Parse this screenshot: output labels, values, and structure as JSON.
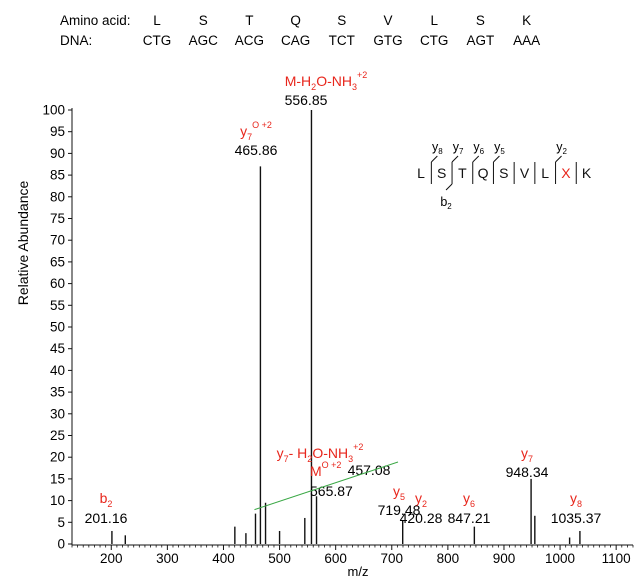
{
  "sequence_table": {
    "amino_label": "Amino acid:",
    "dna_label": "DNA:",
    "amino_acids": [
      "L",
      "S",
      "T",
      "Q",
      "S",
      "V",
      "L",
      "S",
      "K"
    ],
    "codons": [
      "CTG",
      "AGC",
      "ACG",
      "CAG",
      "TCT",
      "GTG",
      "CTG",
      "AGT",
      "AAA"
    ]
  },
  "colors": {
    "annotation": "#e8261c",
    "axis": "#111111",
    "peak": "#111111",
    "leader": "#3aa845"
  },
  "fragment_map": {
    "residues": [
      "L",
      "S",
      "T",
      "Q",
      "S",
      "V",
      "L",
      "X",
      "K"
    ],
    "highlight_residue": "X",
    "top_ions": [
      {
        "ion": "y",
        "sub": "8"
      },
      {
        "ion": "y",
        "sub": "7"
      },
      {
        "ion": "y",
        "sub": "6"
      },
      {
        "ion": "y",
        "sub": "5"
      },
      {
        "ion": "y",
        "sub": "2"
      }
    ],
    "bottom_ions": [
      {
        "ion": "b",
        "sub": "2"
      }
    ]
  },
  "chart_data": {
    "type": "bar",
    "xlabel": "m/z",
    "ylabel": "Relative Abundance",
    "xlim": [
      130,
      1130
    ],
    "ylim": [
      0,
      100
    ],
    "xticks": [
      200,
      300,
      400,
      500,
      600,
      700,
      800,
      900,
      1000,
      1100
    ],
    "yticks": [
      0,
      5,
      10,
      15,
      20,
      25,
      30,
      35,
      40,
      45,
      50,
      55,
      60,
      65,
      70,
      75,
      80,
      85,
      90,
      95,
      100
    ],
    "annotated_peaks": [
      {
        "mz": 201.16,
        "intensity": 3,
        "label": "201.16",
        "ion": "b",
        "sub": "2",
        "sup": ""
      },
      {
        "mz": 420.28,
        "intensity": 4,
        "label": "420.28",
        "ion": "y",
        "sub": "2",
        "sup": ""
      },
      {
        "mz": 457.08,
        "intensity": 7,
        "label": "457.08",
        "ion": "y",
        "sub": "7",
        "sup": "",
        "suffix": "- H",
        "suffix_sub": "2",
        "suffix2": "O-NH",
        "suffix2_sub": "3",
        "suffix2_sup": "+2"
      },
      {
        "mz": 465.86,
        "intensity": 87,
        "label": "465.86",
        "ion": "y",
        "sub": "7",
        "sup": "O +2"
      },
      {
        "mz": 556.85,
        "intensity": 100,
        "label": "556.85",
        "ion": "M-H",
        "sub": "2",
        "sup": "",
        "suffix": "O-NH",
        "suffix_sub": "3",
        "suffix_sup": "+2"
      },
      {
        "mz": 565.87,
        "intensity": 11,
        "label": "565.87",
        "ion": "M",
        "sub": "",
        "sup": "O +2"
      },
      {
        "mz": 719.48,
        "intensity": 5.5,
        "label": "719.48",
        "ion": "y",
        "sub": "5",
        "sup": ""
      },
      {
        "mz": 847.21,
        "intensity": 4,
        "label": "847.21",
        "ion": "y",
        "sub": "6",
        "sup": ""
      },
      {
        "mz": 948.34,
        "intensity": 15,
        "label": "948.34",
        "ion": "y",
        "sub": "7",
        "sup": ""
      },
      {
        "mz": 1035.37,
        "intensity": 3,
        "label": "1035.37",
        "ion": "y",
        "sub": "8",
        "sup": ""
      }
    ],
    "minor_peaks": [
      {
        "mz": 225,
        "intensity": 2
      },
      {
        "mz": 440,
        "intensity": 2.5
      },
      {
        "mz": 475,
        "intensity": 9.5
      },
      {
        "mz": 500,
        "intensity": 3
      },
      {
        "mz": 545,
        "intensity": 6
      },
      {
        "mz": 955,
        "intensity": 6.5
      },
      {
        "mz": 1017,
        "intensity": 1.5
      }
    ]
  }
}
